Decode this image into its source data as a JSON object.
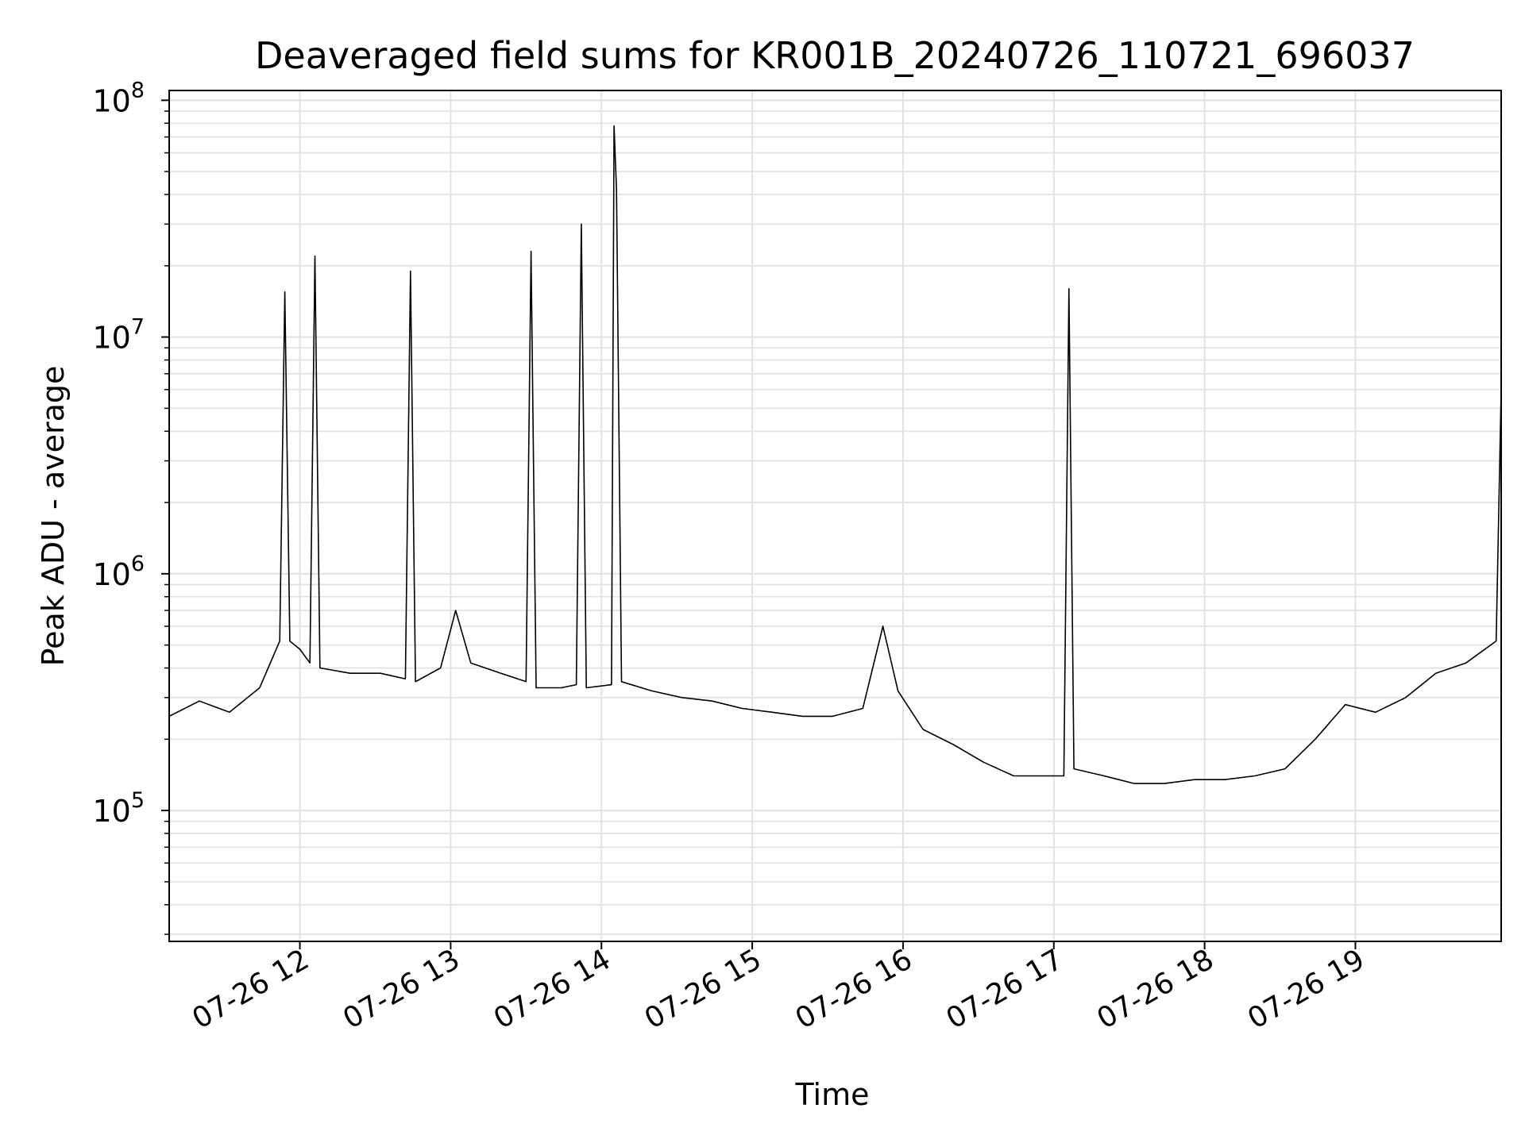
{
  "chart_data": {
    "type": "line",
    "title": "Deaveraged field sums for KR001B_20240726_110721_696037",
    "xlabel": "Time",
    "ylabel": "Peak ADU - average",
    "yscale": "log",
    "grid": true,
    "xlim": [
      "07-26 11:08",
      "07-26 19:58"
    ],
    "ylim": [
      28000,
      110000000
    ],
    "x_ticks": [
      "07-26 12",
      "07-26 13",
      "07-26 14",
      "07-26 15",
      "07-26 16",
      "07-26 17",
      "07-26 18",
      "07-26 19"
    ],
    "y_ticks": [
      {
        "base": "10",
        "exp": "5"
      },
      {
        "base": "10",
        "exp": "6"
      },
      {
        "base": "10",
        "exp": "7"
      },
      {
        "base": "10",
        "exp": "8"
      }
    ],
    "series": [
      {
        "color": "#000000",
        "points": [
          [
            "07-26 11:08",
            250000
          ],
          [
            "07-26 11:20",
            290000
          ],
          [
            "07-26 11:32",
            260000
          ],
          [
            "07-26 11:44",
            330000
          ],
          [
            "07-26 11:52",
            520000
          ],
          [
            "07-26 11:54",
            15500000
          ],
          [
            "07-26 11:56",
            520000
          ],
          [
            "07-26 12:00",
            480000
          ],
          [
            "07-26 12:04",
            420000
          ],
          [
            "07-26 12:06",
            22000000
          ],
          [
            "07-26 12:08",
            400000
          ],
          [
            "07-26 12:20",
            380000
          ],
          [
            "07-26 12:32",
            380000
          ],
          [
            "07-26 12:42",
            360000
          ],
          [
            "07-26 12:44",
            19000000
          ],
          [
            "07-26 12:46",
            350000
          ],
          [
            "07-26 12:56",
            400000
          ],
          [
            "07-26 13:02",
            700000
          ],
          [
            "07-26 13:08",
            420000
          ],
          [
            "07-26 13:20",
            380000
          ],
          [
            "07-26 13:30",
            350000
          ],
          [
            "07-26 13:32",
            23000000
          ],
          [
            "07-26 13:34",
            330000
          ],
          [
            "07-26 13:44",
            330000
          ],
          [
            "07-26 13:50",
            340000
          ],
          [
            "07-26 13:52",
            30000000
          ],
          [
            "07-26 13:54",
            330000
          ],
          [
            "07-26 14:04",
            340000
          ],
          [
            "07-26 14:05",
            78000000
          ],
          [
            "07-26 14:06",
            42000000
          ],
          [
            "07-26 14:08",
            350000
          ],
          [
            "07-26 14:20",
            320000
          ],
          [
            "07-26 14:32",
            300000
          ],
          [
            "07-26 14:44",
            290000
          ],
          [
            "07-26 14:56",
            270000
          ],
          [
            "07-26 15:08",
            260000
          ],
          [
            "07-26 15:20",
            250000
          ],
          [
            "07-26 15:32",
            250000
          ],
          [
            "07-26 15:44",
            270000
          ],
          [
            "07-26 15:52",
            600000
          ],
          [
            "07-26 15:58",
            320000
          ],
          [
            "07-26 16:08",
            220000
          ],
          [
            "07-26 16:20",
            190000
          ],
          [
            "07-26 16:32",
            160000
          ],
          [
            "07-26 16:44",
            140000
          ],
          [
            "07-26 16:56",
            140000
          ],
          [
            "07-26 17:04",
            140000
          ],
          [
            "07-26 17:06",
            16000000
          ],
          [
            "07-26 17:08",
            150000
          ],
          [
            "07-26 17:20",
            140000
          ],
          [
            "07-26 17:32",
            130000
          ],
          [
            "07-26 17:44",
            130000
          ],
          [
            "07-26 17:56",
            135000
          ],
          [
            "07-26 18:08",
            135000
          ],
          [
            "07-26 18:20",
            140000
          ],
          [
            "07-26 18:32",
            150000
          ],
          [
            "07-26 18:44",
            200000
          ],
          [
            "07-26 18:56",
            280000
          ],
          [
            "07-26 19:08",
            260000
          ],
          [
            "07-26 19:20",
            300000
          ],
          [
            "07-26 19:32",
            380000
          ],
          [
            "07-26 19:44",
            420000
          ],
          [
            "07-26 19:56",
            520000
          ],
          [
            "07-26 19:58",
            6000000
          ]
        ]
      }
    ]
  }
}
